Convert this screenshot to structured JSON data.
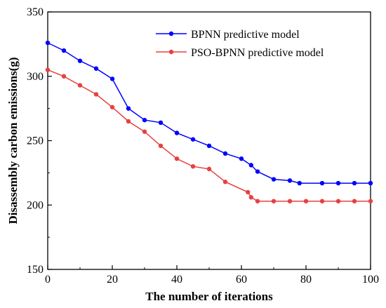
{
  "chart_data": {
    "type": "line",
    "title": "",
    "xlabel": "The number of iterations",
    "ylabel": "Disassembly carbon emissions(g)",
    "xlim": [
      0,
      100
    ],
    "ylim": [
      150,
      350
    ],
    "xticks": [
      "0",
      "20",
      "40",
      "60",
      "80",
      "100"
    ],
    "yticks": [
      "150",
      "200",
      "250",
      "300",
      "350"
    ],
    "grid": false,
    "legend_position": "top-right",
    "series": [
      {
        "name": "BPNN predictive model",
        "color": "#0000ff",
        "x": [
          0,
          5,
          10,
          15,
          20,
          25,
          30,
          35,
          40,
          45,
          50,
          55,
          60,
          63,
          65,
          70,
          75,
          78,
          85,
          90,
          95,
          100
        ],
        "y": [
          326,
          320,
          312,
          306,
          298,
          275,
          266,
          264,
          256,
          251,
          246,
          240,
          236,
          231,
          226,
          220,
          219,
          217,
          217,
          217,
          217,
          217
        ]
      },
      {
        "name": "PSO-BPNN predictive model",
        "color": "#e84040",
        "x": [
          0,
          5,
          10,
          15,
          20,
          25,
          30,
          35,
          40,
          45,
          50,
          55,
          62,
          63,
          65,
          70,
          75,
          80,
          85,
          90,
          95,
          100
        ],
        "y": [
          305,
          300,
          293,
          286,
          276,
          265,
          257,
          246,
          236,
          230,
          228,
          218,
          210,
          206,
          203,
          203,
          203,
          203,
          203,
          203,
          203,
          203
        ]
      }
    ]
  }
}
